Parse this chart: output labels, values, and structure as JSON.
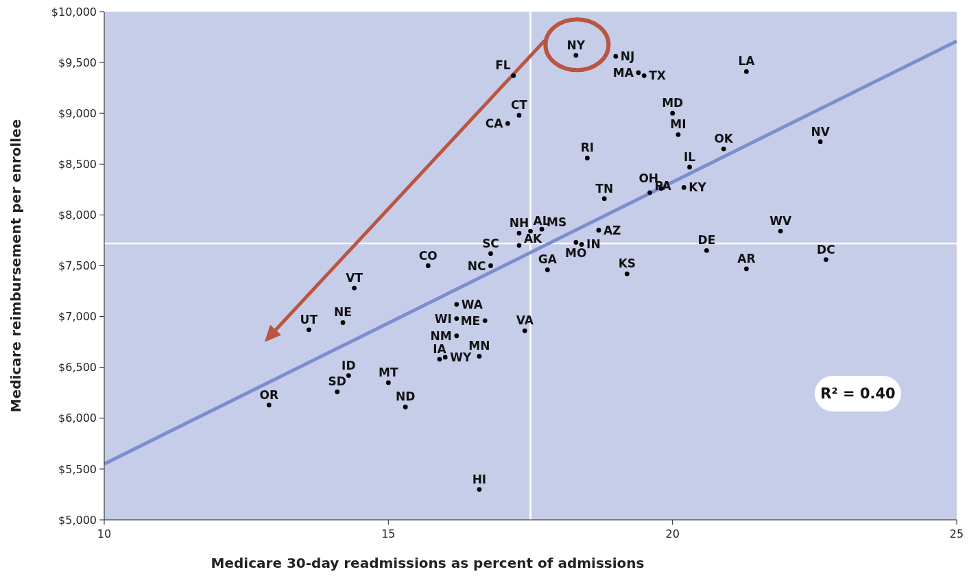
{
  "chart_data": {
    "type": "scatter",
    "xlabel": "Medicare 30-day readmissions as percent of admissions",
    "ylabel": "Medicare reimbursement per enrollee",
    "xlim": [
      10,
      25
    ],
    "xticks": [
      10,
      15,
      20,
      25
    ],
    "ylim": [
      5000,
      10000
    ],
    "yticks": [
      {
        "value": 5000,
        "label": "$5,000"
      },
      {
        "value": 5500,
        "label": "$5,500"
      },
      {
        "value": 6000,
        "label": "$6,000"
      },
      {
        "value": 6500,
        "label": "$6,500"
      },
      {
        "value": 7000,
        "label": "$7,000"
      },
      {
        "value": 7500,
        "label": "$7,500"
      },
      {
        "value": 8000,
        "label": "$8,000"
      },
      {
        "value": 8500,
        "label": "$8,500"
      },
      {
        "value": 9000,
        "label": "$9,000"
      },
      {
        "value": 9500,
        "label": "$9,500"
      },
      {
        "value": 10000,
        "label": "$10,000"
      }
    ],
    "grid": false,
    "series": [
      {
        "color": "#000000",
        "marker": "circle",
        "x": [
          18.3,
          19.0,
          17.2,
          19.4,
          19.5,
          21.3,
          17.3,
          17.1,
          20.0,
          20.1,
          18.5,
          20.9,
          22.6,
          20.3,
          19.8,
          19.6,
          20.2,
          18.8,
          18.7,
          21.9,
          17.3,
          17.5,
          17.7,
          18.3,
          18.4,
          16.8,
          17.3,
          16.8,
          17.8,
          15.7,
          19.2,
          20.6,
          21.3,
          22.7,
          14.4,
          16.2,
          16.2,
          16.7,
          13.6,
          14.2,
          17.4,
          16.2,
          16.6,
          15.9,
          16.0,
          14.3,
          14.1,
          15.0,
          12.9,
          15.3,
          16.6
        ],
        "values": [
          9570,
          9560,
          9370,
          9400,
          9370,
          9410,
          8980,
          8900,
          9000,
          8790,
          8560,
          8650,
          8720,
          8470,
          8260,
          8220,
          8270,
          8160,
          7850,
          7840,
          7820,
          7840,
          7860,
          7730,
          7710,
          7620,
          7700,
          7500,
          7460,
          7500,
          7420,
          7650,
          7470,
          7560,
          7280,
          7120,
          6980,
          6960,
          6870,
          6940,
          6860,
          6810,
          6610,
          6580,
          6600,
          6420,
          6260,
          6350,
          6130,
          6110,
          5300
        ]
      },
      {
        "type": "line",
        "color": "#7b8fcf",
        "x": [
          10,
          25
        ],
        "values": [
          5550,
          9710
        ]
      }
    ],
    "ref_lines": [
      {
        "axis": "x",
        "value": 17.5,
        "color": "#ffffff"
      },
      {
        "axis": "y",
        "value": 7720,
        "color": "#ffffff"
      }
    ],
    "annotations": [
      "R² = 0.40",
      {
        "text": "NY",
        "x": 18.3,
        "y": 9570
      },
      {
        "text": "NJ",
        "x": 19.0,
        "y": 9560
      },
      {
        "text": "FL",
        "x": 17.2,
        "y": 9370
      },
      {
        "text": "MA",
        "x": 19.4,
        "y": 9400
      },
      {
        "text": "TX",
        "x": 19.5,
        "y": 9370
      },
      {
        "text": "LA",
        "x": 21.3,
        "y": 9410
      },
      {
        "text": "CT",
        "x": 17.3,
        "y": 8980
      },
      {
        "text": "CA",
        "x": 17.1,
        "y": 8900
      },
      {
        "text": "MD",
        "x": 20.0,
        "y": 9000
      },
      {
        "text": "MI",
        "x": 20.1,
        "y": 8790
      },
      {
        "text": "RI",
        "x": 18.5,
        "y": 8560
      },
      {
        "text": "OK",
        "x": 20.9,
        "y": 8650
      },
      {
        "text": "NV",
        "x": 22.6,
        "y": 8720
      },
      {
        "text": "IL",
        "x": 20.3,
        "y": 8470
      },
      {
        "text": "OH",
        "x": 19.8,
        "y": 8260
      },
      {
        "text": "PA",
        "x": 19.6,
        "y": 8220
      },
      {
        "text": "KY",
        "x": 20.2,
        "y": 8270
      },
      {
        "text": "TN",
        "x": 18.8,
        "y": 8160
      },
      {
        "text": "AZ",
        "x": 18.7,
        "y": 7850
      },
      {
        "text": "WV",
        "x": 21.9,
        "y": 7840
      },
      {
        "text": "NH",
        "x": 17.3,
        "y": 7820
      },
      {
        "text": "AL",
        "x": 17.5,
        "y": 7840
      },
      {
        "text": "MS",
        "x": 17.7,
        "y": 7860
      },
      {
        "text": "MO",
        "x": 18.3,
        "y": 7730
      },
      {
        "text": "IN",
        "x": 18.4,
        "y": 7710
      },
      {
        "text": "SC",
        "x": 16.8,
        "y": 7620
      },
      {
        "text": "AK",
        "x": 17.3,
        "y": 7700
      },
      {
        "text": "NC",
        "x": 16.8,
        "y": 7500
      },
      {
        "text": "GA",
        "x": 17.8,
        "y": 7460
      },
      {
        "text": "CO",
        "x": 15.7,
        "y": 7500
      },
      {
        "text": "KS",
        "x": 19.2,
        "y": 7420
      },
      {
        "text": "DE",
        "x": 20.6,
        "y": 7650
      },
      {
        "text": "AR",
        "x": 21.3,
        "y": 7470
      },
      {
        "text": "DC",
        "x": 22.7,
        "y": 7560
      },
      {
        "text": "VT",
        "x": 14.4,
        "y": 7280
      },
      {
        "text": "WA",
        "x": 16.2,
        "y": 7120
      },
      {
        "text": "WI",
        "x": 16.2,
        "y": 6980
      },
      {
        "text": "ME",
        "x": 16.7,
        "y": 6960
      },
      {
        "text": "UT",
        "x": 13.6,
        "y": 6870
      },
      {
        "text": "NE",
        "x": 14.2,
        "y": 6940
      },
      {
        "text": "VA",
        "x": 17.4,
        "y": 6860
      },
      {
        "text": "NM",
        "x": 16.2,
        "y": 6810
      },
      {
        "text": "MN",
        "x": 16.6,
        "y": 6610
      },
      {
        "text": "IA",
        "x": 15.9,
        "y": 6580
      },
      {
        "text": "WY",
        "x": 16.0,
        "y": 6600
      },
      {
        "text": "ID",
        "x": 14.3,
        "y": 6420
      },
      {
        "text": "SD",
        "x": 14.1,
        "y": 6260
      },
      {
        "text": "MT",
        "x": 15.0,
        "y": 6350
      },
      {
        "text": "OR",
        "x": 12.9,
        "y": 6130
      },
      {
        "text": "ND",
        "x": 15.3,
        "y": 6110
      },
      {
        "text": "HI",
        "x": 16.6,
        "y": 5300
      }
    ]
  }
}
